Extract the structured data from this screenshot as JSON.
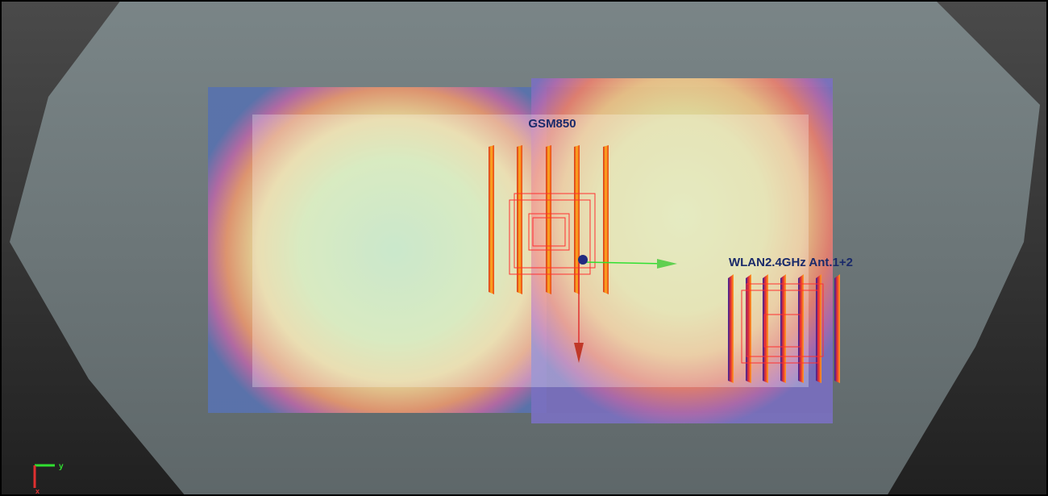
{
  "labels": {
    "gsm": "GSM850",
    "wlan": "WLAN2.4GHz Ant.1+2"
  },
  "axes": {
    "y": "y",
    "x": "x"
  }
}
